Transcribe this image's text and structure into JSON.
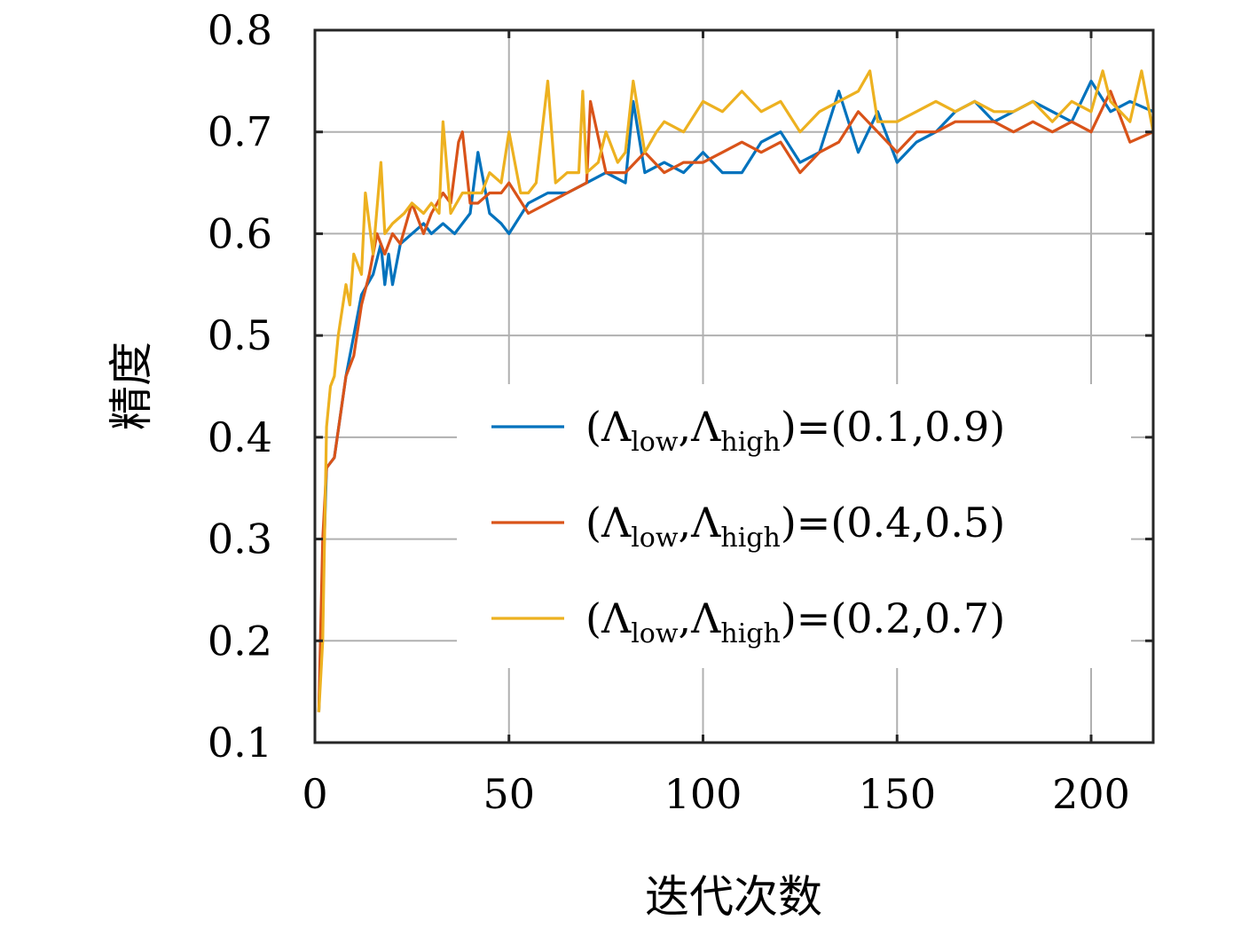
{
  "chart_data": {
    "type": "line",
    "title": "",
    "xlabel": "迭代次数",
    "ylabel": "精度",
    "xlim": [
      0,
      216
    ],
    "ylim": [
      0.1,
      0.8
    ],
    "xticks": [
      0,
      50,
      100,
      150,
      200
    ],
    "yticks": [
      0.1,
      0.2,
      0.3,
      0.4,
      0.5,
      0.6,
      0.7,
      0.8
    ],
    "xtick_labels": [
      "0",
      "50",
      "100",
      "150",
      "200"
    ],
    "ytick_labels": [
      "0.1",
      "0.2",
      "0.3",
      "0.4",
      "0.5",
      "0.6",
      "0.7",
      "0.8"
    ],
    "grid": true,
    "legend_position": "bottom-right",
    "series": [
      {
        "name": "(Λlow,Λhigh)=(0.1,0.9)",
        "label_parts": {
          "open": "(",
          "sym": "Λ",
          "sub1": "low",
          "sep": ",",
          "sub2": "high",
          "mid": ")=(",
          "v1": "0.1",
          "comma": ",",
          "v2": "0.9",
          "close": ")"
        },
        "color": "#0072BD",
        "x": [
          1,
          2,
          3,
          5,
          8,
          10,
          12,
          15,
          17,
          18,
          19,
          20,
          22,
          25,
          28,
          30,
          33,
          36,
          40,
          42,
          45,
          48,
          50,
          55,
          60,
          65,
          70,
          75,
          80,
          82,
          85,
          90,
          95,
          100,
          105,
          110,
          115,
          120,
          125,
          130,
          135,
          140,
          145,
          150,
          155,
          160,
          165,
          170,
          175,
          180,
          185,
          190,
          195,
          200,
          205,
          210,
          216
        ],
        "y": [
          0.13,
          0.25,
          0.37,
          0.38,
          0.46,
          0.5,
          0.54,
          0.56,
          0.59,
          0.55,
          0.58,
          0.55,
          0.59,
          0.6,
          0.61,
          0.6,
          0.61,
          0.6,
          0.62,
          0.68,
          0.62,
          0.61,
          0.6,
          0.63,
          0.64,
          0.64,
          0.65,
          0.66,
          0.65,
          0.73,
          0.66,
          0.67,
          0.66,
          0.68,
          0.66,
          0.66,
          0.69,
          0.7,
          0.67,
          0.68,
          0.74,
          0.68,
          0.72,
          0.67,
          0.69,
          0.7,
          0.72,
          0.73,
          0.71,
          0.72,
          0.73,
          0.72,
          0.71,
          0.75,
          0.72,
          0.73,
          0.72
        ]
      },
      {
        "name": "(Λlow,Λhigh)=(0.4,0.5)",
        "label_parts": {
          "open": "(",
          "sym": "Λ",
          "sub1": "low",
          "sep": ",",
          "sub2": "high",
          "mid": ")=(",
          "v1": "0.4",
          "comma": ",",
          "v2": "0.5",
          "close": ")"
        },
        "color": "#D95319",
        "x": [
          1,
          2,
          3,
          5,
          8,
          10,
          12,
          14,
          16,
          18,
          20,
          22,
          25,
          28,
          30,
          33,
          35,
          37,
          38,
          40,
          42,
          45,
          48,
          50,
          55,
          60,
          65,
          70,
          71,
          75,
          80,
          85,
          90,
          95,
          100,
          105,
          110,
          115,
          120,
          125,
          130,
          135,
          140,
          145,
          150,
          155,
          160,
          165,
          170,
          175,
          180,
          185,
          190,
          195,
          200,
          205,
          210,
          216
        ],
        "y": [
          0.13,
          0.3,
          0.37,
          0.38,
          0.46,
          0.48,
          0.53,
          0.56,
          0.6,
          0.58,
          0.6,
          0.59,
          0.63,
          0.6,
          0.62,
          0.64,
          0.63,
          0.69,
          0.7,
          0.63,
          0.63,
          0.64,
          0.64,
          0.65,
          0.62,
          0.63,
          0.64,
          0.65,
          0.73,
          0.66,
          0.66,
          0.68,
          0.66,
          0.67,
          0.67,
          0.68,
          0.69,
          0.68,
          0.69,
          0.66,
          0.68,
          0.69,
          0.72,
          0.7,
          0.68,
          0.7,
          0.7,
          0.71,
          0.71,
          0.71,
          0.7,
          0.71,
          0.7,
          0.71,
          0.7,
          0.74,
          0.69,
          0.7
        ]
      },
      {
        "name": "(Λlow,Λhigh)=(0.2,0.7)",
        "label_parts": {
          "open": "(",
          "sym": "Λ",
          "sub1": "low",
          "sep": ",",
          "sub2": "high",
          "mid": ")=(",
          "v1": "0.2",
          "comma": ",",
          "v2": "0.7",
          "close": ")"
        },
        "color": "#EDB120",
        "x": [
          1,
          2,
          3,
          4,
          5,
          6,
          8,
          9,
          10,
          12,
          13,
          15,
          17,
          18,
          20,
          23,
          25,
          28,
          30,
          32,
          33,
          35,
          38,
          40,
          43,
          45,
          48,
          50,
          53,
          55,
          57,
          60,
          62,
          65,
          68,
          69,
          70,
          73,
          75,
          78,
          80,
          82,
          85,
          88,
          90,
          95,
          100,
          105,
          110,
          115,
          120,
          125,
          130,
          135,
          140,
          143,
          145,
          150,
          155,
          160,
          165,
          170,
          175,
          180,
          185,
          190,
          195,
          200,
          203,
          205,
          210,
          213,
          216
        ],
        "y": [
          0.13,
          0.2,
          0.41,
          0.45,
          0.46,
          0.5,
          0.55,
          0.53,
          0.58,
          0.56,
          0.64,
          0.58,
          0.67,
          0.6,
          0.61,
          0.62,
          0.63,
          0.62,
          0.63,
          0.62,
          0.71,
          0.62,
          0.64,
          0.64,
          0.64,
          0.66,
          0.65,
          0.7,
          0.64,
          0.64,
          0.65,
          0.75,
          0.65,
          0.66,
          0.66,
          0.74,
          0.66,
          0.67,
          0.7,
          0.67,
          0.68,
          0.75,
          0.68,
          0.7,
          0.71,
          0.7,
          0.73,
          0.72,
          0.74,
          0.72,
          0.73,
          0.7,
          0.72,
          0.73,
          0.74,
          0.76,
          0.71,
          0.71,
          0.72,
          0.73,
          0.72,
          0.73,
          0.72,
          0.72,
          0.73,
          0.71,
          0.73,
          0.72,
          0.76,
          0.73,
          0.71,
          0.76,
          0.7
        ]
      }
    ]
  }
}
